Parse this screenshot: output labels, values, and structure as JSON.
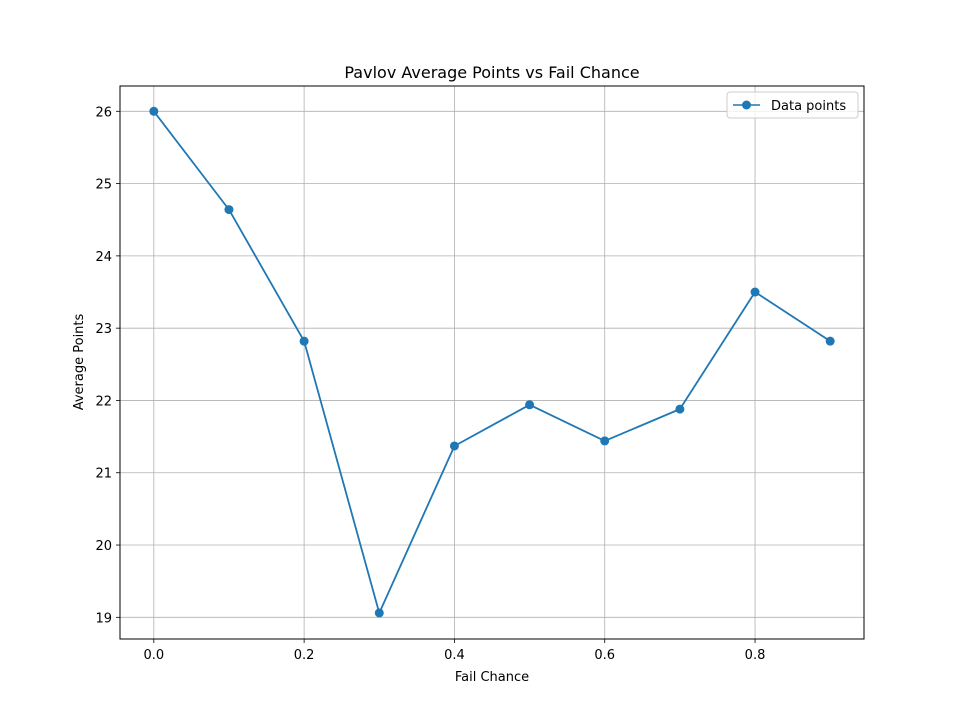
{
  "chart_data": {
    "type": "line",
    "title": "Pavlov Average Points vs Fail Chance",
    "xlabel": "Fail Chance",
    "ylabel": "Average Points",
    "x": [
      0.0,
      0.1,
      0.2,
      0.3,
      0.4,
      0.5,
      0.6,
      0.7,
      0.8,
      0.9
    ],
    "series": [
      {
        "name": "Data points",
        "values": [
          26.0,
          24.64,
          22.82,
          19.06,
          21.37,
          21.94,
          21.44,
          21.88,
          23.5,
          22.82
        ],
        "color": "#1f77b4",
        "marker": "circle"
      }
    ],
    "xlim": [
      -0.045,
      0.945
    ],
    "ylim": [
      18.7,
      26.35
    ],
    "xticks": [
      "0.0",
      "0.2",
      "0.4",
      "0.6",
      "0.8"
    ],
    "xtick_values": [
      0.0,
      0.2,
      0.4,
      0.6,
      0.8
    ],
    "yticks": [
      "19",
      "20",
      "21",
      "22",
      "23",
      "24",
      "25",
      "26"
    ],
    "ytick_values": [
      19,
      20,
      21,
      22,
      23,
      24,
      25,
      26
    ],
    "grid": true,
    "legend_position": "upper right"
  }
}
